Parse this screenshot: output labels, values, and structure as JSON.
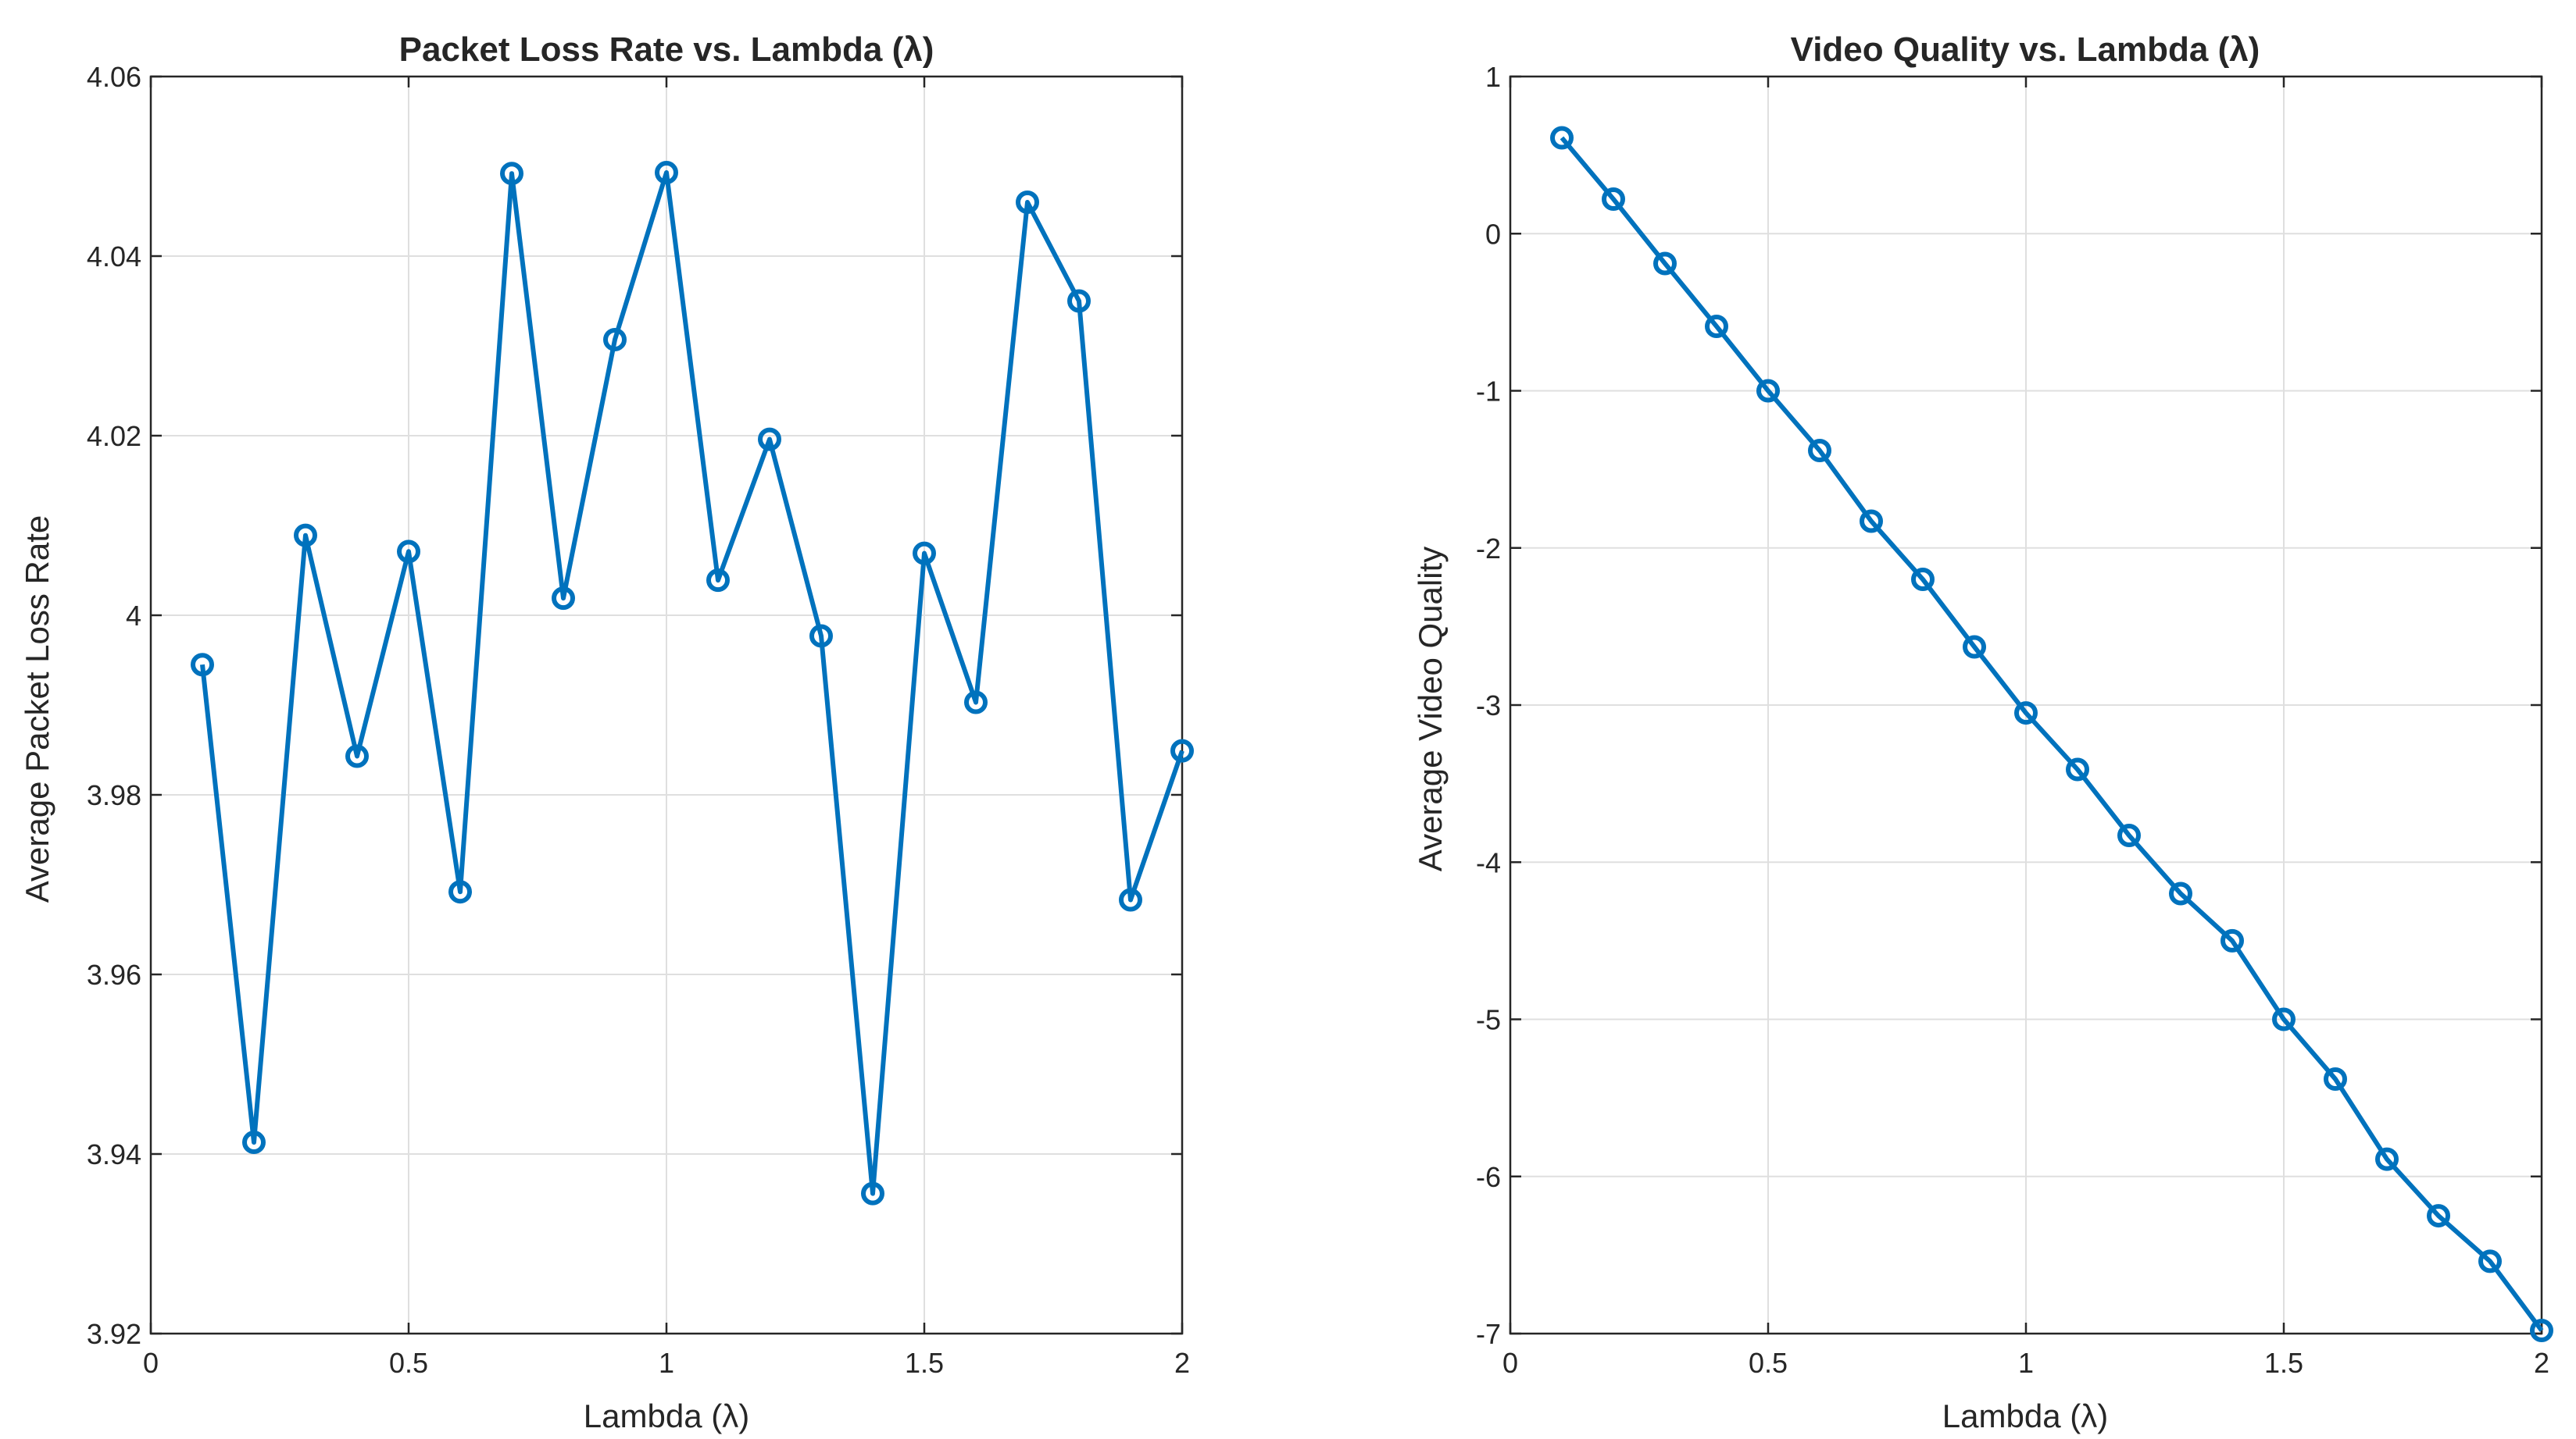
{
  "chart_data": [
    {
      "type": "line",
      "title": "Packet Loss Rate vs. Lambda (λ)",
      "xlabel": "Lambda (λ)",
      "ylabel": "Average Packet Loss Rate",
      "xlim": [
        0,
        2
      ],
      "ylim": [
        3.92,
        4.06
      ],
      "grid": true,
      "xticks": [
        0,
        0.5,
        1,
        1.5,
        2
      ],
      "xtick_labels": [
        "0",
        "0.5",
        "1",
        "1.5",
        "2"
      ],
      "yticks": [
        3.92,
        3.94,
        3.96,
        3.98,
        4.0,
        4.02,
        4.04,
        4.06
      ],
      "ytick_labels": [
        "3.92",
        "3.94",
        "3.96",
        "3.98",
        "4",
        "4.02",
        "4.04",
        "4.06"
      ],
      "color": "#0072bd",
      "marker": "circle",
      "x": [
        0.1,
        0.2,
        0.3,
        0.4,
        0.5,
        0.6,
        0.7,
        0.8,
        0.9,
        1.0,
        1.1,
        1.2,
        1.3,
        1.4,
        1.5,
        1.6,
        1.7,
        1.8,
        1.9,
        2.0
      ],
      "y": [
        3.9945,
        3.9413,
        4.0089,
        3.9843,
        4.0071,
        3.9692,
        4.0492,
        4.0019,
        4.0307,
        4.0493,
        4.0039,
        4.0196,
        3.9977,
        3.9356,
        4.0069,
        3.9903,
        4.046,
        4.035,
        3.9683,
        3.9849
      ]
    },
    {
      "type": "line",
      "title": "Video Quality vs. Lambda (λ)",
      "xlabel": "Lambda (λ)",
      "ylabel": "Average Video Quality",
      "xlim": [
        0,
        2
      ],
      "ylim": [
        -7,
        1
      ],
      "grid": true,
      "xticks": [
        0,
        0.5,
        1,
        1.5,
        2
      ],
      "xtick_labels": [
        "0",
        "0.5",
        "1",
        "1.5",
        "2"
      ],
      "yticks": [
        -7,
        -6,
        -5,
        -4,
        -3,
        -2,
        -1,
        0,
        1
      ],
      "ytick_labels": [
        "-7",
        "-6",
        "-5",
        "-4",
        "-3",
        "-2",
        "-1",
        "0",
        "1"
      ],
      "color": "#0072bd",
      "marker": "circle",
      "x": [
        0.1,
        0.2,
        0.3,
        0.4,
        0.5,
        0.6,
        0.7,
        0.8,
        0.9,
        1.0,
        1.1,
        1.2,
        1.3,
        1.4,
        1.5,
        1.6,
        1.7,
        1.8,
        1.9,
        2.0
      ],
      "y": [
        0.61,
        0.22,
        -0.19,
        -0.59,
        -1.0,
        -1.38,
        -1.83,
        -2.2,
        -2.63,
        -3.05,
        -3.41,
        -3.83,
        -4.2,
        -4.5,
        -5.0,
        -5.38,
        -5.89,
        -6.25,
        -6.54,
        -6.98
      ]
    }
  ]
}
